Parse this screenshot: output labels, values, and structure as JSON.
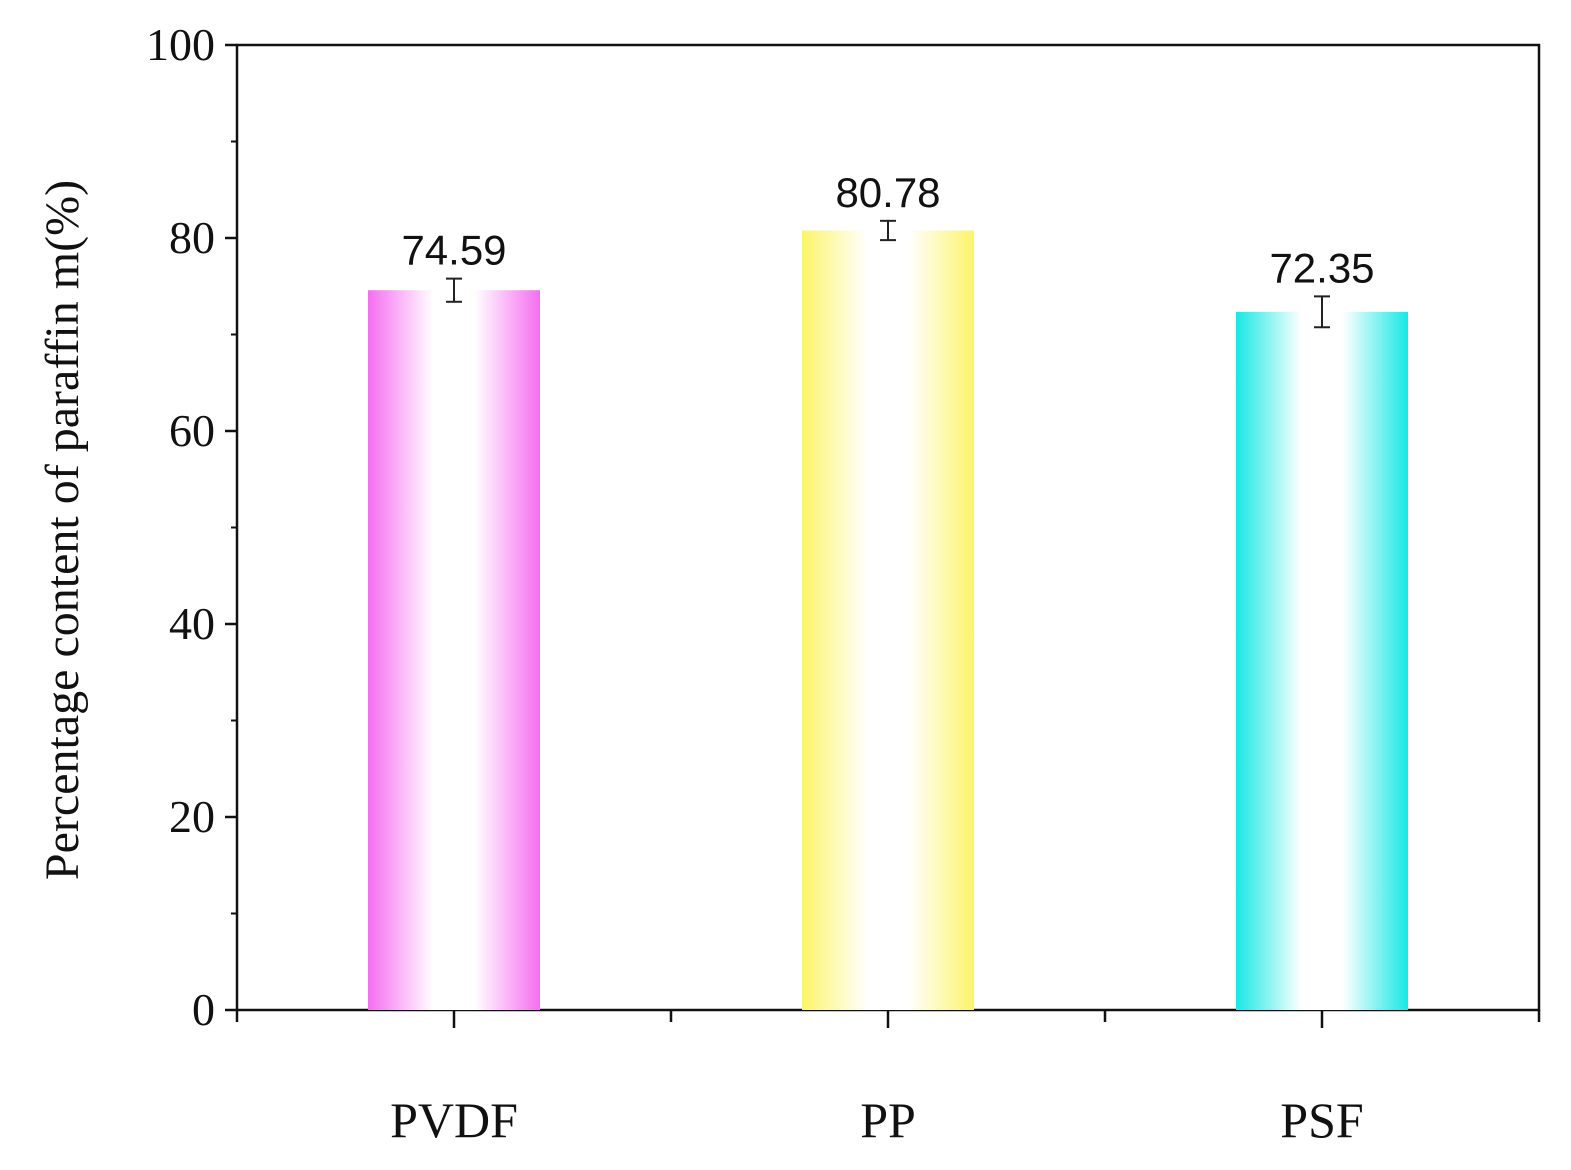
{
  "chart_data": {
    "type": "bar",
    "categories": [
      "PVDF",
      "PP",
      "PSF"
    ],
    "values": [
      74.59,
      80.78,
      72.35
    ],
    "value_labels": [
      "74.59",
      "80.78",
      "72.35"
    ],
    "error": [
      1.2,
      1.0,
      1.6
    ],
    "ylabel": "Percentage content of paraffin m(%)",
    "xlabel": "",
    "ylim": [
      0,
      100
    ],
    "yticks": [
      0,
      20,
      40,
      60,
      80,
      100
    ],
    "grid": false,
    "colors": [
      "#f56ef0",
      "#fbf56a",
      "#18e8e4"
    ]
  }
}
